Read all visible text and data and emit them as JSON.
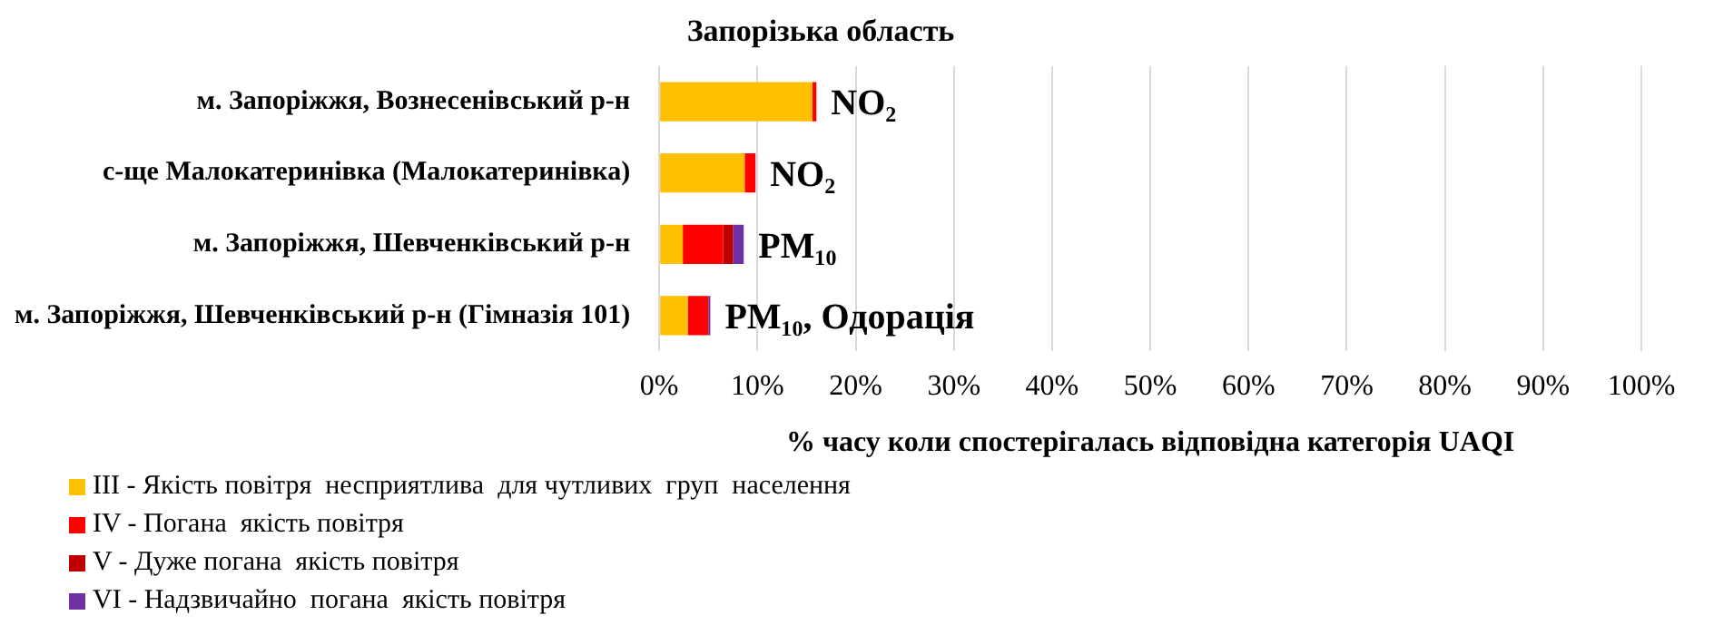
{
  "chart_data": {
    "type": "bar",
    "orientation": "horizontal",
    "stacked": true,
    "title": "Запорізька область",
    "xlabel": "% часу коли спостерігалась відповідна категорія UAQI",
    "categories": [
      "м. Запоріжжя, Вознесенівський р-н",
      "с-ще Малокатеринівка (Малокатеринівка)",
      "м. Запоріжжя, Шевченківський р-н",
      "м. Запоріжжя, Шевченківський р-н (Гімназія 101)"
    ],
    "series": [
      {
        "name": "III - Якість повітря  несприятлива  для чутливих  груп  населення",
        "color": "#ffc000",
        "values": [
          15.6,
          8.7,
          2.4,
          2.9
        ]
      },
      {
        "name": "IV - Погана  якість повітря",
        "color": "#ff0000",
        "values": [
          0.4,
          1.1,
          4.1,
          2.1
        ]
      },
      {
        "name": "V - Дуже погана  якість повітря",
        "color": "#c00000",
        "values": [
          0,
          0,
          1.0,
          0
        ]
      },
      {
        "name": "VI - Надзвичайно  погана  якість повітря",
        "color": "#7030a0",
        "values": [
          0,
          0,
          1.1,
          0.2
        ]
      }
    ],
    "xlim": [
      0,
      100
    ],
    "xticks": [
      {
        "value": 0,
        "label": "0%"
      },
      {
        "value": 10,
        "label": "10%"
      },
      {
        "value": 20,
        "label": "20%"
      },
      {
        "value": 30,
        "label": "30%"
      },
      {
        "value": 40,
        "label": "40%"
      },
      {
        "value": 50,
        "label": "50%"
      },
      {
        "value": 60,
        "label": "60%"
      },
      {
        "value": 70,
        "label": "70%"
      },
      {
        "value": 80,
        "label": "80%"
      },
      {
        "value": 90,
        "label": "90%"
      },
      {
        "value": 100,
        "label": "100%"
      }
    ],
    "grid": "x",
    "legend": "bottom left",
    "annotations": [
      {
        "text": "NO₂",
        "x": 16,
        "y": "м. Запоріжжя, Вознесенівський р-н"
      },
      {
        "text": "NO₂",
        "x": 9.8,
        "y": "с-ще Малокатеринівка (Малокатеринівка)"
      },
      {
        "text": "PM₁₀",
        "x": 8.6,
        "y": "м. Запоріжжя, Шевченківський р-н"
      },
      {
        "text": "PM₁₀, Одорація",
        "x": 5.2,
        "y": "м. Запоріжжя, Шевченківський р-н (Гімназія 101)"
      }
    ]
  }
}
